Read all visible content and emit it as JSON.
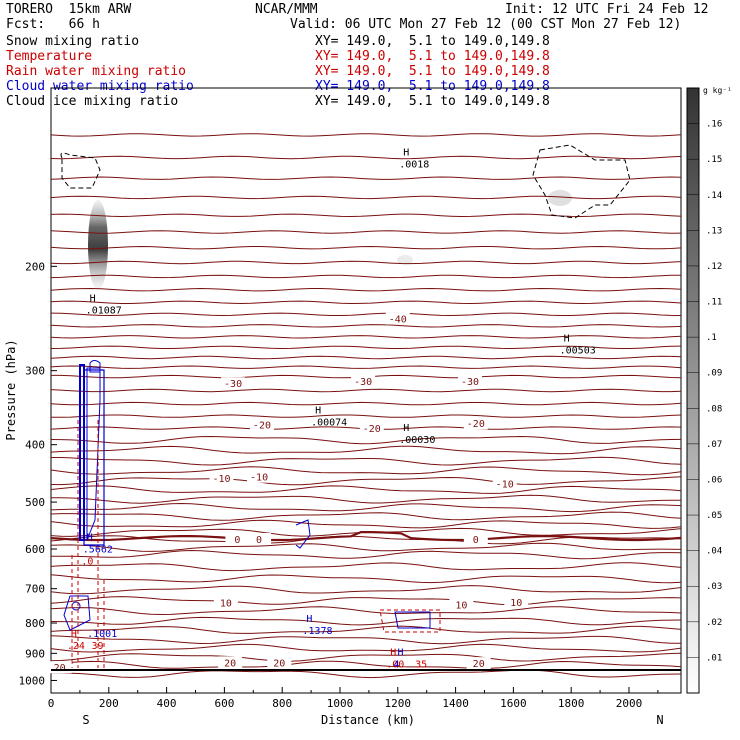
{
  "header": {
    "model": "TORERO  15km ARW",
    "org": "NCAR/MMM",
    "init": "Init: 12 UTC Fri 24 Feb 12",
    "fcst": "Fcst:   66 h",
    "valid": "Valid: 06 UTC Mon 27 Feb 12 (00 CST Mon 27 Feb 12)"
  },
  "fields": [
    {
      "name": "Snow mixing ratio",
      "xy": "XY= 149.0,  5.1 to 149.0,149.8",
      "color": "#000000"
    },
    {
      "name": "Temperature",
      "xy": "XY= 149.0,  5.1 to 149.0,149.8",
      "color": "#cc0000"
    },
    {
      "name": "Rain water mixing ratio",
      "xy": "XY= 149.0,  5.1 to 149.0,149.8",
      "color": "#cc0000"
    },
    {
      "name": "Cloud water mixing ratio",
      "xy": "XY= 149.0,  5.1 to 149.0,149.8",
      "color": "#0000cc"
    },
    {
      "name": "Cloud ice mixing ratio",
      "xy": "XY= 149.0,  5.1 to 149.0,149.8",
      "color": "#000000"
    }
  ],
  "colors": {
    "temperature": "#7a1010",
    "rain": "#cc0000",
    "cloud_water": "#0000cc",
    "cloud_ice": "#000000"
  },
  "chart_data": {
    "type": "cross-section contour",
    "xlabel": "Distance (km)",
    "ylabel": "Pressure (hPa)",
    "xlim": [
      0,
      2180
    ],
    "ylim": [
      1050,
      100
    ],
    "y_scale": "log",
    "x_ticks": [
      0,
      200,
      400,
      600,
      800,
      1000,
      1200,
      1400,
      1600,
      1800,
      2000
    ],
    "y_ticks": [
      200,
      300,
      400,
      500,
      600,
      700,
      800,
      900,
      1000
    ],
    "endpoint_labels": {
      "left": "S",
      "right": "N"
    },
    "temperature_labels": [
      {
        "x": 1200,
        "p": 245,
        "text": "-40"
      },
      {
        "x": 630,
        "p": 315,
        "text": "-30"
      },
      {
        "x": 1080,
        "p": 312,
        "text": "-30"
      },
      {
        "x": 1450,
        "p": 312,
        "text": "-30"
      },
      {
        "x": 730,
        "p": 370,
        "text": "-20"
      },
      {
        "x": 1110,
        "p": 375,
        "text": "-20"
      },
      {
        "x": 1470,
        "p": 368,
        "text": "-20"
      },
      {
        "x": 590,
        "p": 455,
        "text": "-10"
      },
      {
        "x": 720,
        "p": 453,
        "text": "-10"
      },
      {
        "x": 1570,
        "p": 465,
        "text": "-10"
      },
      {
        "x": 645,
        "p": 577,
        "text": "0"
      },
      {
        "x": 720,
        "p": 577,
        "text": "0"
      },
      {
        "x": 1470,
        "p": 577,
        "text": "0"
      },
      {
        "x": 605,
        "p": 738,
        "text": "10"
      },
      {
        "x": 1420,
        "p": 745,
        "text": "10"
      },
      {
        "x": 1610,
        "p": 737,
        "text": "10"
      },
      {
        "x": 620,
        "p": 932,
        "text": "20"
      },
      {
        "x": 790,
        "p": 932,
        "text": "20"
      },
      {
        "x": 1480,
        "p": 935,
        "text": "20"
      },
      {
        "x": 30,
        "p": 950,
        "text": "20"
      }
    ],
    "extrema_labels": [
      {
        "x": 120,
        "p": 233,
        "letter": "H",
        "value": ".01087",
        "color": "#000000"
      },
      {
        "x": 1760,
        "p": 272,
        "letter": "H",
        "value": ".00503",
        "color": "#000000"
      },
      {
        "x": 900,
        "p": 360,
        "letter": "H",
        "value": ".00074",
        "color": "#000000"
      },
      {
        "x": 1205,
        "p": 385,
        "letter": "H",
        "value": ".00030",
        "color": "#000000"
      },
      {
        "x": 1205,
        "p": 132,
        "letter": "H",
        "value": ".0018",
        "color": "#000000"
      },
      {
        "x": 110,
        "p": 590,
        "letter": "H",
        "value": ".5662",
        "color": "#0000cc"
      },
      {
        "x": 105,
        "p": 618,
        "letter": "",
        "value": ".0",
        "color": "#cc0000"
      },
      {
        "x": 870,
        "p": 810,
        "letter": "H",
        "value": ".1378",
        "color": "#0000cc"
      },
      {
        "x": 125,
        "p": 818,
        "letter": "",
        "value": ".1001",
        "color": "#0000cc"
      },
      {
        "x": 55,
        "p": 858,
        "letter": "H",
        "value": ".24",
        "color": "#cc0000"
      },
      {
        "x": 140,
        "p": 858,
        "letter": "",
        "value": "39",
        "color": "#cc0000"
      },
      {
        "x": 1160,
        "p": 922,
        "letter": "H",
        "value": ".00",
        "color": "#cc0000"
      },
      {
        "x": 1185,
        "p": 922,
        "letter": "H",
        "value": "4",
        "color": "#0000cc"
      },
      {
        "x": 1260,
        "p": 922,
        "letter": "",
        "value": "35",
        "color": "#cc0000"
      }
    ],
    "colorbar": {
      "unit": "g kg⁻¹",
      "levels": [
        ".01",
        ".02",
        ".03",
        ".04",
        ".05",
        ".06",
        ".07",
        ".08",
        ".09",
        ".1",
        ".11",
        ".12",
        ".13",
        ".14",
        ".15",
        ".16"
      ]
    }
  }
}
